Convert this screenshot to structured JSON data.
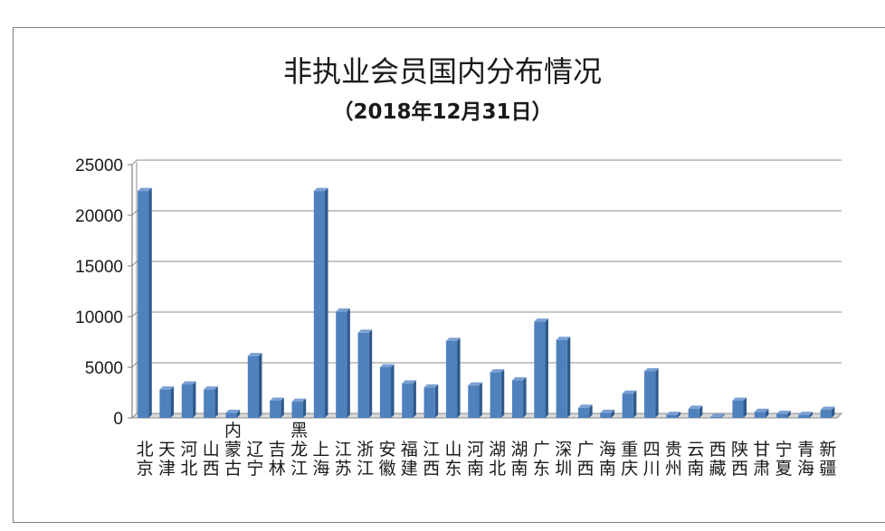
{
  "chart_data": {
    "type": "bar",
    "title": "非执业会员国内分布情况",
    "subtitle": "（2018年12月31日）",
    "xlabel": "",
    "ylabel": "",
    "ylim": [
      0,
      25000
    ],
    "yticks": [
      "0",
      "5000",
      "10000",
      "15000",
      "20000",
      "25000"
    ],
    "grid": true,
    "legend": "none",
    "bar_color": "#4f81bd",
    "categories": [
      "北京",
      "天津",
      "河北",
      "山西",
      "内蒙古",
      "辽宁",
      "吉林",
      "黑龙江",
      "上海",
      "江苏",
      "浙江",
      "安徽",
      "福建",
      "江西",
      "山东",
      "河南",
      "湖北",
      "湖南",
      "广东",
      "深圳",
      "广西",
      "海南",
      "重庆",
      "四川",
      "贵州",
      "云南",
      "西藏",
      "陕西",
      "甘肃",
      "宁夏",
      "青海",
      "新疆"
    ],
    "values": [
      22400,
      2800,
      3300,
      2800,
      500,
      6100,
      1700,
      1600,
      22400,
      10500,
      8400,
      5000,
      3400,
      3000,
      7600,
      3200,
      4500,
      3700,
      9500,
      7700,
      1000,
      500,
      2400,
      4600,
      300,
      900,
      100,
      1700,
      600,
      400,
      300,
      800
    ]
  }
}
